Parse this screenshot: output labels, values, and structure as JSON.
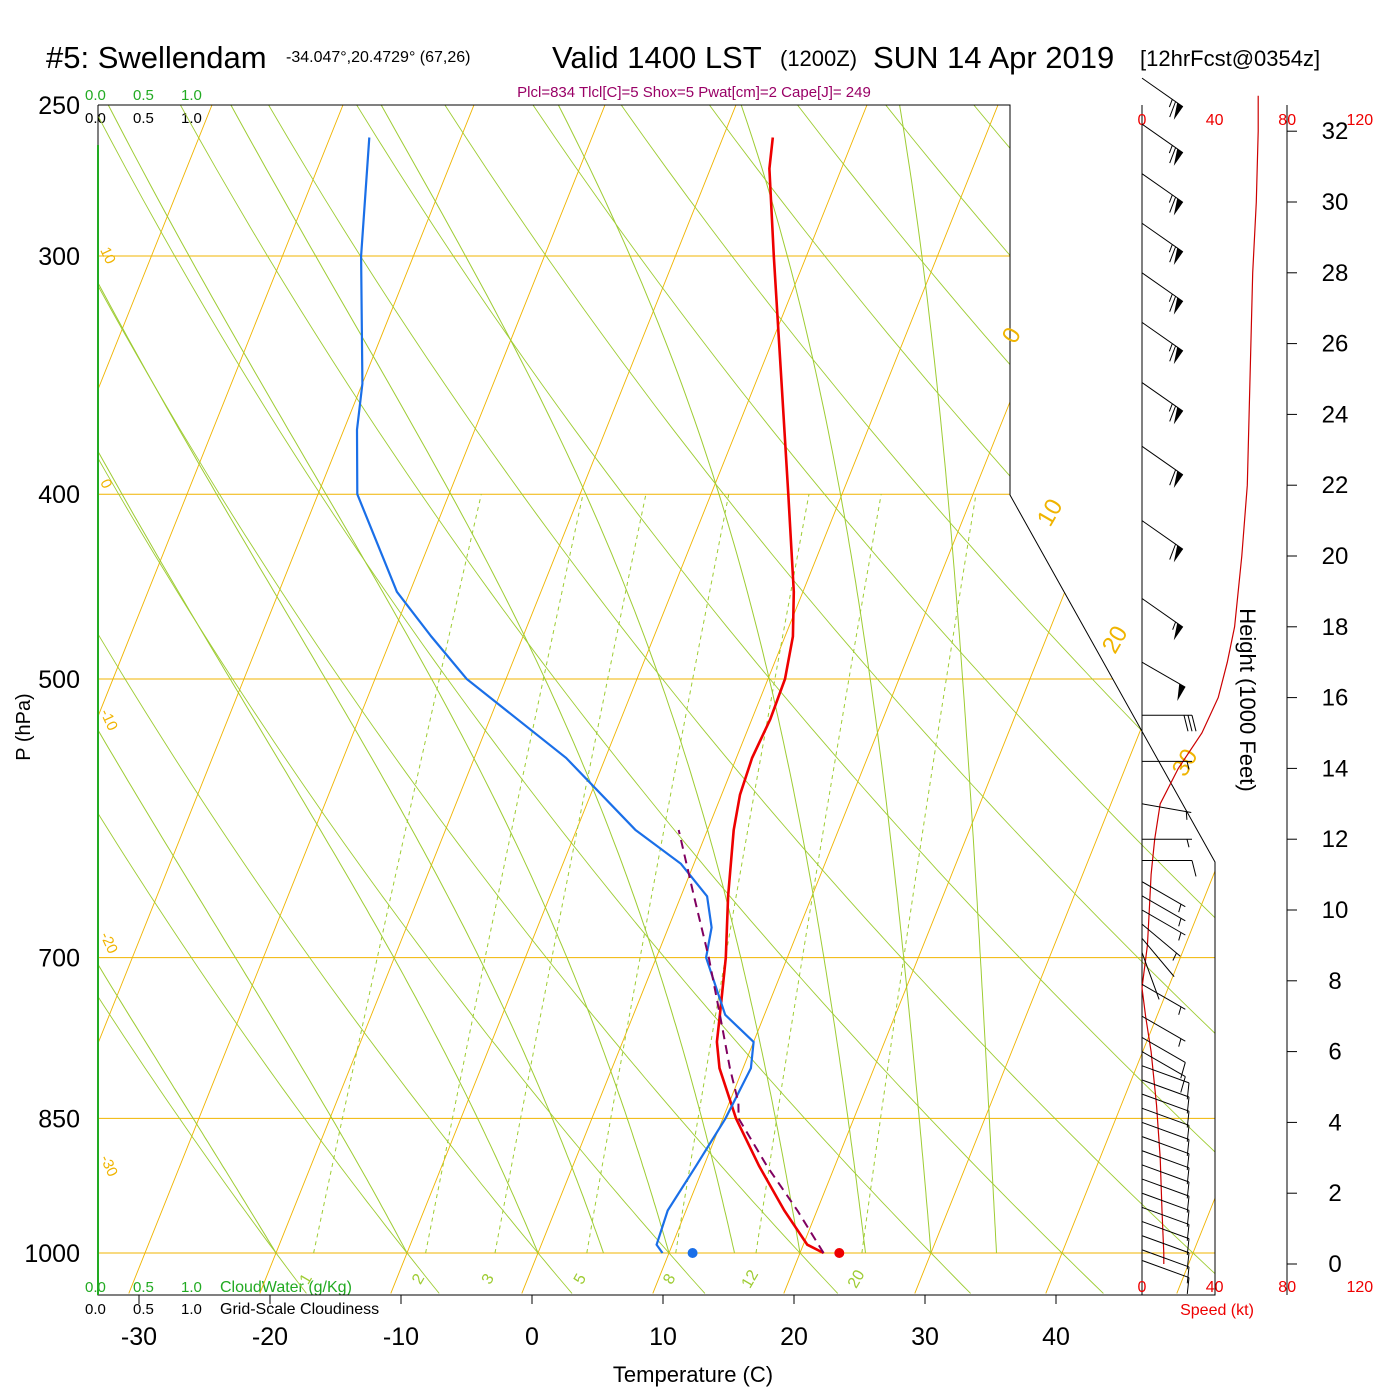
{
  "header": {
    "station": "#5: Swellendam",
    "coords": "-34.047°,20.4729° (67,26)",
    "valid": "Valid 1400 LST",
    "zulu": "(1200Z)",
    "date": "SUN 14 Apr 2019",
    "forecast": "[12hrFcst@0354z]",
    "indices": "Plcl=834 Tlcl[C]=5 Shox=5 Pwat[cm]=2 Cape[J]= 249"
  },
  "legend": {
    "cloudwater_ticks": [
      "0.0",
      "0.5",
      "1.0"
    ],
    "cloudwater_label": "CloudWater (g/Kg)",
    "cloudiness_ticks": [
      "0.0",
      "0.5",
      "1.0"
    ],
    "cloudiness_label": "Grid-Scale Cloudiness",
    "speed_label": "Speed (kt)"
  },
  "colors": {
    "temperature": "#ee0000",
    "dewpoint": "#1a6fe8",
    "parcel": "#800060",
    "isobar": "#f0b400",
    "isotherm": "#f0b400",
    "dry_adiabat": "#9ecc33",
    "moist_adiabat": "#9ecc33",
    "mixing_ratio": "#9ecc33",
    "speed": "#cc0000",
    "cloud": "#22aa22",
    "indices": "#990066"
  },
  "chart_data": {
    "type": "line",
    "subtype": "skew-T log-P sounding",
    "xlabel": "Temperature (C)",
    "ylabel": "P (hPa)",
    "y2label": "Height (1000 Feet)",
    "x_ticks": [
      -30,
      -20,
      -10,
      0,
      10,
      20,
      30,
      40
    ],
    "pressure_ticks": [
      250,
      300,
      400,
      500,
      700,
      850,
      1000
    ],
    "pressure_range": [
      1000,
      250
    ],
    "log_pressure": true,
    "height_ticks": [
      0,
      2,
      4,
      6,
      8,
      10,
      12,
      14,
      16,
      18,
      20,
      22,
      24,
      26,
      28,
      30,
      32
    ],
    "speed_ticks": [
      "0",
      "40",
      "80",
      "120"
    ],
    "isotherm_labels": [
      "10",
      "0",
      "-10",
      "-20",
      "-30",
      "0",
      "10",
      "20",
      "30"
    ],
    "mixing_ratio_labels": [
      "1",
      "2",
      "3",
      "5",
      "8",
      "12",
      "20"
    ],
    "series": [
      {
        "key": "temperature",
        "points": [
          [
            1000,
            21.8
          ],
          [
            990,
            20.3
          ],
          [
            950,
            17.5
          ],
          [
            900,
            14.2
          ],
          [
            850,
            11.0
          ],
          [
            800,
            8.2
          ],
          [
            775,
            7.2
          ],
          [
            750,
            6.6
          ],
          [
            700,
            5.3
          ],
          [
            650,
            3.6
          ],
          [
            600,
            2.0
          ],
          [
            575,
            1.4
          ],
          [
            550,
            1.2
          ],
          [
            525,
            1.4
          ],
          [
            500,
            1.3
          ],
          [
            475,
            0.6
          ],
          [
            450,
            -0.7
          ],
          [
            400,
            -4.1
          ],
          [
            350,
            -8.0
          ],
          [
            300,
            -12.5
          ],
          [
            270,
            -15.5
          ],
          [
            260,
            -16.2
          ]
        ]
      },
      {
        "key": "dewpoint",
        "points": [
          [
            1000,
            9.5
          ],
          [
            990,
            8.8
          ],
          [
            950,
            8.6
          ],
          [
            900,
            9.4
          ],
          [
            850,
            10.2
          ],
          [
            800,
            10.6
          ],
          [
            775,
            10.0
          ],
          [
            750,
            7.0
          ],
          [
            700,
            3.8
          ],
          [
            675,
            3.3
          ],
          [
            650,
            2.0
          ],
          [
            625,
            -1.0
          ],
          [
            600,
            -5.5
          ],
          [
            550,
            -13.0
          ],
          [
            500,
            -23.0
          ],
          [
            475,
            -27.0
          ],
          [
            450,
            -31.0
          ],
          [
            400,
            -37.0
          ],
          [
            370,
            -39.0
          ],
          [
            350,
            -40.0
          ],
          [
            300,
            -44.0
          ],
          [
            260,
            -47.0
          ]
        ]
      },
      {
        "key": "parcel",
        "points": [
          [
            1000,
            21.8
          ],
          [
            950,
            18.5
          ],
          [
            900,
            14.8
          ],
          [
            850,
            11.2
          ],
          [
            834,
            10.7
          ],
          [
            800,
            9.0
          ],
          [
            750,
            6.6
          ],
          [
            700,
            4.0
          ],
          [
            650,
            1.0
          ],
          [
            600,
            -2.2
          ]
        ]
      }
    ],
    "surface_temperature": 23.0,
    "surface_dewpoint": 11.8,
    "wind_speed_profile": [
      [
        0.0,
        12
      ],
      [
        0.3,
        12
      ],
      [
        1.5,
        11
      ],
      [
        3.0,
        10
      ],
      [
        4.5,
        8
      ],
      [
        6.0,
        5
      ],
      [
        7.0,
        2
      ],
      [
        7.8,
        0
      ],
      [
        8.2,
        1
      ],
      [
        9.0,
        3
      ],
      [
        10.0,
        4
      ],
      [
        11.0,
        5
      ],
      [
        12.0,
        7
      ],
      [
        13.0,
        10
      ],
      [
        14.0,
        20
      ],
      [
        15.0,
        33
      ],
      [
        16.0,
        42
      ],
      [
        17.0,
        47
      ],
      [
        18.0,
        51
      ],
      [
        19.0,
        53
      ],
      [
        20.0,
        55
      ],
      [
        22.0,
        58
      ],
      [
        24.0,
        59
      ],
      [
        26.0,
        60
      ],
      [
        28.0,
        61
      ],
      [
        30.0,
        63
      ],
      [
        32.0,
        64
      ],
      [
        33.0,
        64
      ]
    ],
    "wind_barbs": [
      {
        "height": 0.1,
        "dir": 290,
        "speed": 10
      },
      {
        "height": 0.4,
        "dir": 290,
        "speed": 12
      },
      {
        "height": 0.8,
        "dir": 290,
        "speed": 12
      },
      {
        "height": 1.2,
        "dir": 290,
        "speed": 12
      },
      {
        "height": 1.6,
        "dir": 290,
        "speed": 12
      },
      {
        "height": 2.0,
        "dir": 290,
        "speed": 12
      },
      {
        "height": 2.4,
        "dir": 290,
        "speed": 12
      },
      {
        "height": 2.8,
        "dir": 290,
        "speed": 12
      },
      {
        "height": 3.2,
        "dir": 290,
        "speed": 12
      },
      {
        "height": 3.6,
        "dir": 290,
        "speed": 11
      },
      {
        "height": 4.0,
        "dir": 290,
        "speed": 11
      },
      {
        "height": 4.4,
        "dir": 290,
        "speed": 11
      },
      {
        "height": 4.8,
        "dir": 290,
        "speed": 11
      },
      {
        "height": 5.2,
        "dir": 290,
        "speed": 10
      },
      {
        "height": 5.6,
        "dir": 290,
        "speed": 10
      },
      {
        "height": 6.0,
        "dir": 300,
        "speed": 10
      },
      {
        "height": 6.4,
        "dir": 300,
        "speed": 10
      },
      {
        "height": 7.0,
        "dir": 300,
        "speed": 5
      },
      {
        "height": 7.9,
        "dir": 300,
        "speed": 5
      },
      {
        "height": 8.8,
        "dir": 340,
        "speed": 2
      },
      {
        "height": 9.2,
        "dir": 320,
        "speed": 2
      },
      {
        "height": 9.6,
        "dir": 310,
        "speed": 5
      },
      {
        "height": 10.0,
        "dir": 300,
        "speed": 5
      },
      {
        "height": 10.4,
        "dir": 300,
        "speed": 5
      },
      {
        "height": 10.8,
        "dir": 300,
        "speed": 5
      },
      {
        "height": 11.4,
        "dir": 270,
        "speed": 10
      },
      {
        "height": 12.0,
        "dir": 270,
        "speed": 5
      },
      {
        "height": 13.0,
        "dir": 280,
        "speed": 5
      },
      {
        "height": 14.2,
        "dir": 270,
        "speed": 5
      },
      {
        "height": 15.5,
        "dir": 270,
        "speed": 30
      },
      {
        "height": 17.0,
        "dir": 300,
        "speed": 50
      },
      {
        "height": 18.8,
        "dir": 305,
        "speed": 55
      },
      {
        "height": 21.0,
        "dir": 305,
        "speed": 60
      },
      {
        "height": 23.1,
        "dir": 305,
        "speed": 60
      },
      {
        "height": 24.9,
        "dir": 305,
        "speed": 65
      },
      {
        "height": 26.6,
        "dir": 305,
        "speed": 65
      },
      {
        "height": 28.0,
        "dir": 305,
        "speed": 65
      },
      {
        "height": 29.4,
        "dir": 305,
        "speed": 65
      },
      {
        "height": 30.8,
        "dir": 305,
        "speed": 65
      },
      {
        "height": 32.2,
        "dir": 305,
        "speed": 65
      },
      {
        "height": 33.5,
        "dir": 305,
        "speed": 65
      }
    ]
  }
}
